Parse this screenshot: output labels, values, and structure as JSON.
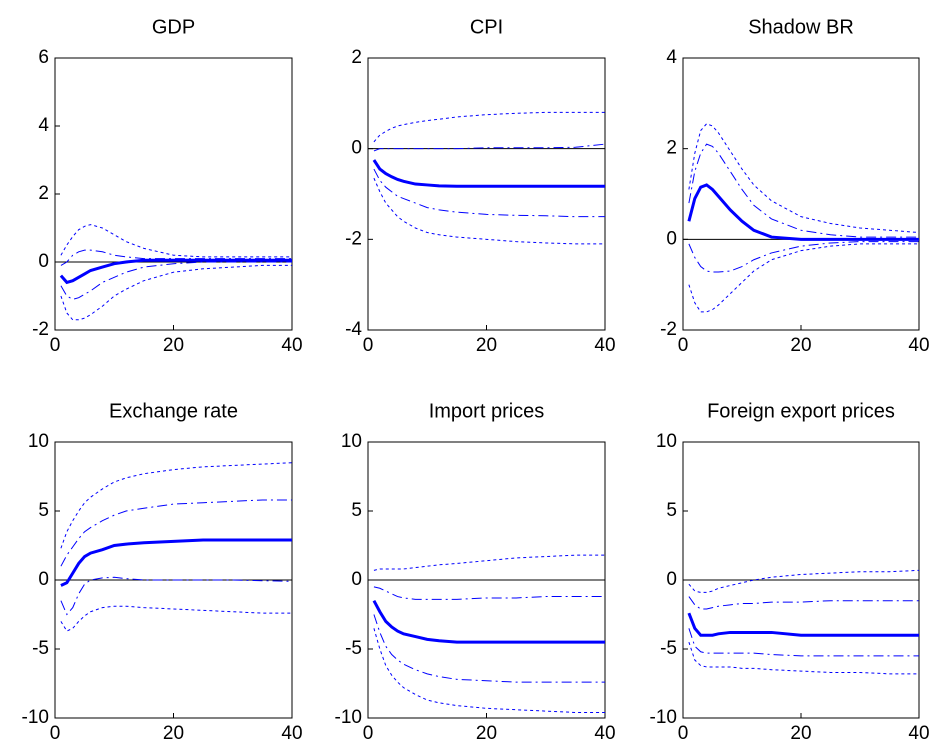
{
  "chart_data": [
    {
      "type": "line",
      "title": "GDP",
      "xlim": [
        0,
        40
      ],
      "xticks": [
        0,
        20,
        40
      ],
      "ylim": [
        -2,
        6
      ],
      "yticks": [
        -2,
        0,
        2,
        4,
        6
      ],
      "hline": 0,
      "x": [
        1,
        2,
        3,
        4,
        5,
        6,
        8,
        10,
        12,
        15,
        20,
        25,
        30,
        35,
        40
      ],
      "series": [
        {
          "color": "#0000ff",
          "dash": "solid",
          "width": 3,
          "values": [
            -0.4,
            -0.6,
            -0.55,
            -0.45,
            -0.35,
            -0.25,
            -0.15,
            -0.05,
            0,
            0.05,
            0.05,
            0.05,
            0.05,
            0.05,
            0.05
          ]
        },
        {
          "color": "#0000ff",
          "dash": "dashdot",
          "width": 1,
          "values": [
            -0.1,
            0,
            0.2,
            0.3,
            0.35,
            0.35,
            0.3,
            0.2,
            0.15,
            0.1,
            0.1,
            0.1,
            0.1,
            0.1,
            0.1
          ]
        },
        {
          "color": "#0000ff",
          "dash": "dashdot",
          "width": 1,
          "values": [
            -0.7,
            -1.0,
            -1.1,
            -1.05,
            -0.95,
            -0.85,
            -0.6,
            -0.45,
            -0.3,
            -0.15,
            -0.05,
            0,
            0,
            0,
            0
          ]
        },
        {
          "color": "#0000ff",
          "dash": "dotted",
          "width": 1,
          "values": [
            0.2,
            0.5,
            0.75,
            0.95,
            1.05,
            1.1,
            1.0,
            0.8,
            0.6,
            0.4,
            0.2,
            0.15,
            0.15,
            0.15,
            0.15
          ]
        },
        {
          "color": "#0000ff",
          "dash": "dotted",
          "width": 1,
          "values": [
            -1.0,
            -1.5,
            -1.7,
            -1.7,
            -1.65,
            -1.55,
            -1.3,
            -1.0,
            -0.8,
            -0.55,
            -0.3,
            -0.2,
            -0.15,
            -0.1,
            -0.1
          ]
        }
      ]
    },
    {
      "type": "line",
      "title": "CPI",
      "xlim": [
        0,
        40
      ],
      "xticks": [
        0,
        20,
        40
      ],
      "ylim": [
        -4,
        2
      ],
      "yticks": [
        -4,
        -2,
        0,
        2
      ],
      "hline": 0,
      "x": [
        1,
        2,
        3,
        4,
        5,
        6,
        8,
        10,
        12,
        15,
        20,
        25,
        30,
        35,
        40
      ],
      "series": [
        {
          "color": "#0000ff",
          "dash": "solid",
          "width": 3,
          "values": [
            -0.25,
            -0.45,
            -0.55,
            -0.62,
            -0.68,
            -0.72,
            -0.78,
            -0.8,
            -0.82,
            -0.83,
            -0.83,
            -0.83,
            -0.83,
            -0.83,
            -0.83
          ]
        },
        {
          "color": "#0000ff",
          "dash": "dashdot",
          "width": 1,
          "values": [
            -0.05,
            0,
            0,
            0,
            0,
            0,
            0,
            0,
            0,
            0,
            0.02,
            0.02,
            0.02,
            0.03,
            0.1
          ]
        },
        {
          "color": "#0000ff",
          "dash": "dashdot",
          "width": 1,
          "values": [
            -0.45,
            -0.7,
            -0.85,
            -0.95,
            -1.05,
            -1.1,
            -1.2,
            -1.3,
            -1.35,
            -1.4,
            -1.45,
            -1.47,
            -1.48,
            -1.5,
            -1.5
          ]
        },
        {
          "color": "#0000ff",
          "dash": "dotted",
          "width": 1,
          "values": [
            0.15,
            0.3,
            0.38,
            0.45,
            0.5,
            0.53,
            0.58,
            0.62,
            0.65,
            0.7,
            0.75,
            0.78,
            0.8,
            0.8,
            0.8
          ]
        },
        {
          "color": "#0000ff",
          "dash": "dotted",
          "width": 1,
          "values": [
            -0.65,
            -0.95,
            -1.2,
            -1.35,
            -1.5,
            -1.6,
            -1.75,
            -1.85,
            -1.9,
            -1.95,
            -2.0,
            -2.05,
            -2.08,
            -2.1,
            -2.1
          ]
        }
      ]
    },
    {
      "type": "line",
      "title": "Shadow BR",
      "xlim": [
        0,
        40
      ],
      "xticks": [
        0,
        20,
        40
      ],
      "ylim": [
        -2,
        4
      ],
      "yticks": [
        -2,
        0,
        2,
        4
      ],
      "hline": 0,
      "x": [
        1,
        2,
        3,
        4,
        5,
        6,
        8,
        10,
        12,
        15,
        20,
        25,
        30,
        35,
        40
      ],
      "series": [
        {
          "color": "#0000ff",
          "dash": "solid",
          "width": 3,
          "values": [
            0.4,
            0.9,
            1.15,
            1.2,
            1.1,
            0.95,
            0.65,
            0.4,
            0.2,
            0.05,
            0,
            0,
            0,
            0,
            0
          ]
        },
        {
          "color": "#0000ff",
          "dash": "dashdot",
          "width": 1,
          "values": [
            0.8,
            1.5,
            1.9,
            2.1,
            2.05,
            1.9,
            1.5,
            1.1,
            0.75,
            0.45,
            0.2,
            0.1,
            0.05,
            0.05,
            0.05
          ]
        },
        {
          "color": "#0000ff",
          "dash": "dashdot",
          "width": 1,
          "values": [
            -0.1,
            -0.4,
            -0.6,
            -0.7,
            -0.72,
            -0.72,
            -0.7,
            -0.6,
            -0.45,
            -0.3,
            -0.15,
            -0.08,
            -0.05,
            -0.05,
            -0.05
          ]
        },
        {
          "color": "#0000ff",
          "dash": "dotted",
          "width": 1,
          "values": [
            1.1,
            1.9,
            2.4,
            2.55,
            2.5,
            2.35,
            1.95,
            1.55,
            1.2,
            0.85,
            0.5,
            0.35,
            0.25,
            0.2,
            0.15
          ]
        },
        {
          "color": "#0000ff",
          "dash": "dotted",
          "width": 1,
          "values": [
            -1.0,
            -1.4,
            -1.6,
            -1.6,
            -1.55,
            -1.45,
            -1.2,
            -0.95,
            -0.7,
            -0.45,
            -0.25,
            -0.15,
            -0.1,
            -0.1,
            -0.1
          ]
        }
      ]
    },
    {
      "type": "line",
      "title": "Exchange rate",
      "xlim": [
        0,
        40
      ],
      "xticks": [
        0,
        20,
        40
      ],
      "ylim": [
        -10,
        10
      ],
      "yticks": [
        -10,
        -5,
        0,
        5,
        10
      ],
      "hline": 0,
      "x": [
        1,
        2,
        3,
        4,
        5,
        6,
        8,
        10,
        12,
        15,
        20,
        25,
        30,
        35,
        40
      ],
      "series": [
        {
          "color": "#0000ff",
          "dash": "solid",
          "width": 3,
          "values": [
            -0.4,
            -0.2,
            0.5,
            1.2,
            1.7,
            1.95,
            2.2,
            2.5,
            2.6,
            2.7,
            2.8,
            2.9,
            2.9,
            2.9,
            2.9
          ]
        },
        {
          "color": "#0000ff",
          "dash": "dashdot",
          "width": 1,
          "values": [
            1.0,
            1.8,
            2.4,
            3.0,
            3.5,
            3.8,
            4.3,
            4.7,
            5.0,
            5.2,
            5.5,
            5.6,
            5.7,
            5.8,
            5.8
          ]
        },
        {
          "color": "#0000ff",
          "dash": "dashdot",
          "width": 1,
          "values": [
            -1.5,
            -2.5,
            -2.0,
            -1.0,
            -0.3,
            0,
            0.15,
            0.2,
            0.1,
            0,
            0,
            0,
            0,
            -0.05,
            -0.1
          ]
        },
        {
          "color": "#0000ff",
          "dash": "dotted",
          "width": 1,
          "values": [
            2.3,
            3.5,
            4.3,
            5.0,
            5.6,
            6.0,
            6.6,
            7.1,
            7.4,
            7.7,
            8.0,
            8.2,
            8.3,
            8.4,
            8.5
          ]
        },
        {
          "color": "#0000ff",
          "dash": "dotted",
          "width": 1,
          "values": [
            -3.0,
            -3.7,
            -3.5,
            -3.0,
            -2.6,
            -2.3,
            -2.0,
            -1.9,
            -1.9,
            -2.0,
            -2.1,
            -2.2,
            -2.3,
            -2.4,
            -2.4
          ]
        }
      ]
    },
    {
      "type": "line",
      "title": "Import prices",
      "xlim": [
        0,
        40
      ],
      "xticks": [
        0,
        20,
        40
      ],
      "ylim": [
        -10,
        10
      ],
      "yticks": [
        -10,
        -5,
        0,
        5,
        10
      ],
      "hline": 0,
      "x": [
        1,
        2,
        3,
        4,
        5,
        6,
        8,
        10,
        12,
        15,
        20,
        25,
        30,
        35,
        40
      ],
      "series": [
        {
          "color": "#0000ff",
          "dash": "solid",
          "width": 3,
          "values": [
            -1.5,
            -2.3,
            -3.0,
            -3.4,
            -3.7,
            -3.9,
            -4.1,
            -4.3,
            -4.4,
            -4.5,
            -4.5,
            -4.5,
            -4.5,
            -4.5,
            -4.5
          ]
        },
        {
          "color": "#0000ff",
          "dash": "dashdot",
          "width": 1,
          "values": [
            -0.5,
            -0.6,
            -0.8,
            -1.0,
            -1.2,
            -1.3,
            -1.4,
            -1.4,
            -1.4,
            -1.4,
            -1.3,
            -1.3,
            -1.2,
            -1.2,
            -1.2
          ]
        },
        {
          "color": "#0000ff",
          "dash": "dashdot",
          "width": 1,
          "values": [
            -2.5,
            -3.8,
            -4.8,
            -5.4,
            -5.8,
            -6.1,
            -6.5,
            -6.8,
            -7.0,
            -7.2,
            -7.3,
            -7.4,
            -7.4,
            -7.4,
            -7.4
          ]
        },
        {
          "color": "#0000ff",
          "dash": "dotted",
          "width": 1,
          "values": [
            0.7,
            0.8,
            0.8,
            0.8,
            0.8,
            0.8,
            0.9,
            1.0,
            1.1,
            1.2,
            1.4,
            1.6,
            1.7,
            1.8,
            1.8
          ]
        },
        {
          "color": "#0000ff",
          "dash": "dotted",
          "width": 1,
          "values": [
            -3.5,
            -5.0,
            -6.2,
            -6.9,
            -7.4,
            -7.8,
            -8.3,
            -8.7,
            -8.9,
            -9.1,
            -9.3,
            -9.4,
            -9.5,
            -9.6,
            -9.6
          ]
        }
      ]
    },
    {
      "type": "line",
      "title": "Foreign export prices",
      "xlim": [
        0,
        40
      ],
      "xticks": [
        0,
        20,
        40
      ],
      "ylim": [
        -10,
        10
      ],
      "yticks": [
        -10,
        -5,
        0,
        5,
        10
      ],
      "hline": 0,
      "x": [
        1,
        2,
        3,
        4,
        5,
        6,
        8,
        10,
        12,
        15,
        20,
        25,
        30,
        35,
        40
      ],
      "series": [
        {
          "color": "#0000ff",
          "dash": "solid",
          "width": 3,
          "values": [
            -2.4,
            -3.5,
            -4.0,
            -4.0,
            -4.0,
            -3.9,
            -3.8,
            -3.8,
            -3.8,
            -3.8,
            -4.0,
            -4.0,
            -4.0,
            -4.0,
            -4.0
          ]
        },
        {
          "color": "#0000ff",
          "dash": "dashdot",
          "width": 1,
          "values": [
            -1.2,
            -1.8,
            -2.1,
            -2.1,
            -2.0,
            -1.9,
            -1.8,
            -1.7,
            -1.7,
            -1.6,
            -1.6,
            -1.5,
            -1.5,
            -1.5,
            -1.5
          ]
        },
        {
          "color": "#0000ff",
          "dash": "dashdot",
          "width": 1,
          "values": [
            -3.5,
            -4.8,
            -5.2,
            -5.3,
            -5.3,
            -5.3,
            -5.3,
            -5.3,
            -5.3,
            -5.4,
            -5.5,
            -5.5,
            -5.5,
            -5.5,
            -5.5
          ]
        },
        {
          "color": "#0000ff",
          "dash": "dotted",
          "width": 1,
          "values": [
            -0.3,
            -0.8,
            -0.9,
            -0.9,
            -0.8,
            -0.6,
            -0.4,
            -0.2,
            0,
            0.2,
            0.4,
            0.5,
            0.6,
            0.6,
            0.7
          ]
        },
        {
          "color": "#0000ff",
          "dash": "dotted",
          "width": 1,
          "values": [
            -4.5,
            -5.8,
            -6.2,
            -6.3,
            -6.3,
            -6.3,
            -6.3,
            -6.4,
            -6.4,
            -6.5,
            -6.6,
            -6.7,
            -6.7,
            -6.8,
            -6.8
          ]
        }
      ]
    }
  ]
}
